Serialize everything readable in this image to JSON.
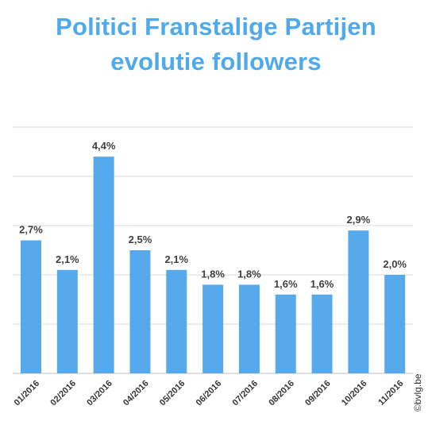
{
  "chart_data": {
    "type": "bar",
    "title_lines": [
      "Politici Franstalige Partijen",
      "evolutie followers"
    ],
    "categories": [
      "01/2016",
      "02/2016",
      "03/2016",
      "04/2016",
      "05/2016",
      "06/2016",
      "07/2016",
      "08/2016",
      "09/2016",
      "10/2016",
      "11/2016"
    ],
    "values": [
      2.7,
      2.1,
      4.4,
      2.5,
      2.1,
      1.8,
      1.8,
      1.6,
      1.6,
      2.9,
      2.0
    ],
    "value_labels": [
      "2,7%",
      "2,1%",
      "4,4%",
      "2,5%",
      "2,1%",
      "1,8%",
      "1,8%",
      "1,6%",
      "1,6%",
      "2,9%",
      "2,0%"
    ],
    "unit": "%",
    "xlabel": "",
    "ylabel": "",
    "ylim": [
      0,
      5
    ],
    "y_gridline_step": 1,
    "y_tick_labels_visible": false,
    "grid": true,
    "legend": "none",
    "bar_color": "#56aaec",
    "title_color": "#4fa9ea",
    "gridline_color": "#d9d9d9"
  },
  "watermark": "©bvlg.be"
}
